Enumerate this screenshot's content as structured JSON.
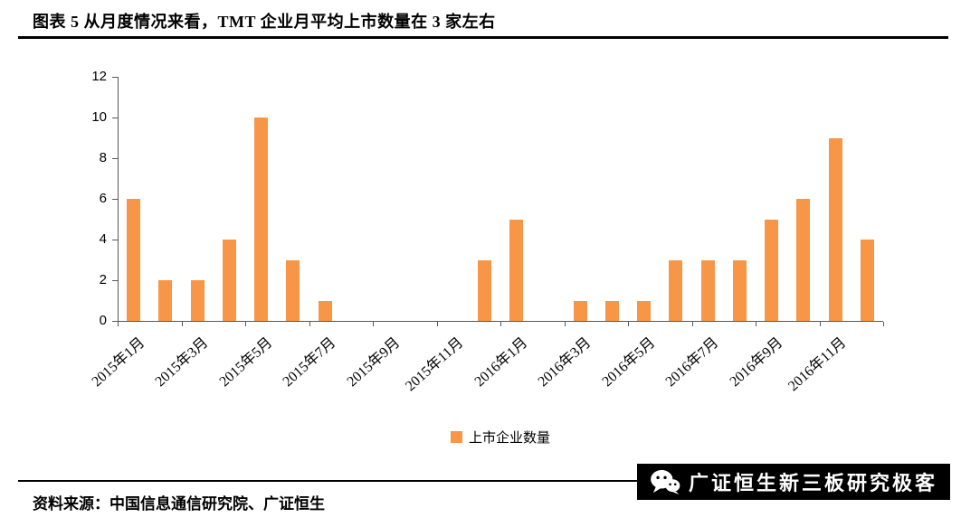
{
  "header": {
    "title": "图表 5 从月度情况来看，TMT 企业月平均上市数量在 3 家左右"
  },
  "chart_data": {
    "type": "bar",
    "title": "",
    "legend": "上市企业数量",
    "bar_color": "#F79646",
    "axis_color": "#595959",
    "grid": false,
    "legend_position": "bottom",
    "categories": [
      "2015年1月",
      "2015年2月",
      "2015年3月",
      "2015年4月",
      "2015年5月",
      "2015年6月",
      "2015年7月",
      "2015年8月",
      "2015年9月",
      "2015年10月",
      "2015年11月",
      "2015年12月",
      "2016年1月",
      "2016年2月",
      "2016年3月",
      "2016年4月",
      "2016年5月",
      "2016年6月",
      "2016年7月",
      "2016年8月",
      "2016年9月",
      "2016年10月",
      "2016年11月",
      "2016年12月"
    ],
    "values": [
      6,
      2,
      2,
      4,
      10,
      3,
      1,
      0,
      0,
      0,
      0,
      3,
      5,
      0,
      1,
      1,
      1,
      3,
      3,
      3,
      5,
      6,
      9,
      4
    ],
    "shown_x_tick_labels": [
      "2015年1月",
      "2015年3月",
      "2015年5月",
      "2015年7月",
      "2015年9月",
      "2015年11月",
      "2016年1月",
      "2016年3月",
      "2016年5月",
      "2016年7月",
      "2016年9月",
      "2016年11月"
    ],
    "xlabel_every": 2,
    "yticks": [
      0,
      2,
      4,
      6,
      8,
      10,
      12
    ],
    "ylim": [
      0,
      12
    ],
    "xlabel": "",
    "ylabel": ""
  },
  "footer": {
    "source": "资料来源：中国信息通信研究院、广证恒生",
    "watermark": "广证恒生新三板研究极客"
  }
}
